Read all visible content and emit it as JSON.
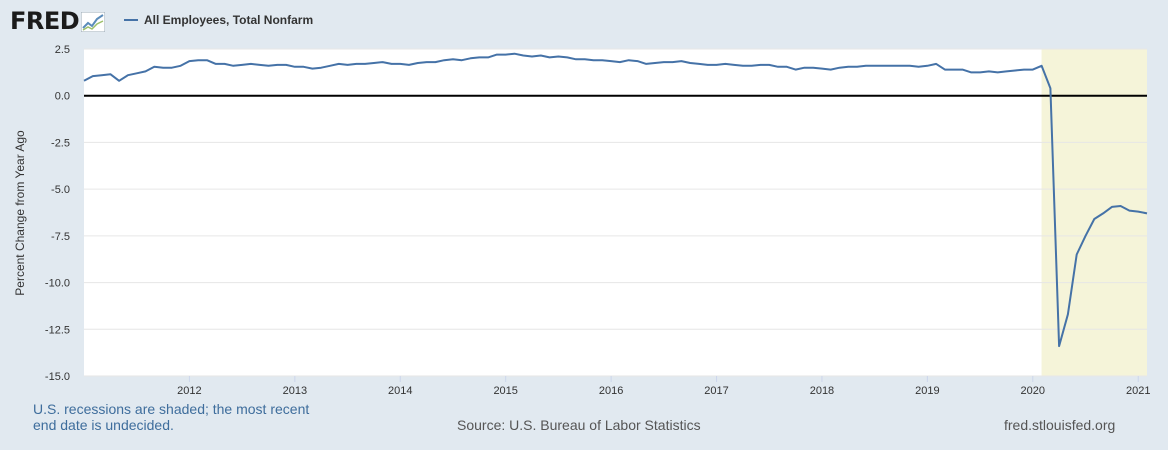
{
  "header": {
    "logo_text": "FRED"
  },
  "footer": {
    "note": "U.S. recessions are shaded; the most recent end date is undecided.",
    "source": "Source: U.S. Bureau of Labor Statistics",
    "site": "fred.stlouisfed.org"
  },
  "colors": {
    "line": "#4572a7",
    "recession": "#f5f4d9",
    "zero_line": "#000000",
    "grid": "#e6e6e6",
    "background": "#e1e9f0",
    "plot_bg": "#ffffff"
  },
  "chart_data": {
    "type": "line",
    "title": "",
    "xlabel": "",
    "ylabel": "Percent Change from Year Ago",
    "ylim": [
      -15.0,
      2.5
    ],
    "yticks": [
      "2.5",
      "0.0",
      "-2.5",
      "-5.0",
      "-7.5",
      "-10.0",
      "-12.5",
      "-15.0"
    ],
    "yticks_values": [
      2.5,
      0,
      -2.5,
      -5,
      -7.5,
      -10,
      -12.5,
      -15
    ],
    "xlim": [
      "2011-01",
      "2021-02"
    ],
    "xticks": [
      "2012",
      "2013",
      "2014",
      "2015",
      "2016",
      "2017",
      "2018",
      "2019",
      "2020",
      "2021"
    ],
    "grid": true,
    "legend_position": "top-left",
    "recession": {
      "start": "2020-02",
      "end": "2021-02"
    },
    "series": [
      {
        "name": "All Employees, Total Nonfarm",
        "x": [
          "2011-01",
          "2011-02",
          "2011-03",
          "2011-04",
          "2011-05",
          "2011-06",
          "2011-07",
          "2011-08",
          "2011-09",
          "2011-10",
          "2011-11",
          "2011-12",
          "2012-01",
          "2012-02",
          "2012-03",
          "2012-04",
          "2012-05",
          "2012-06",
          "2012-07",
          "2012-08",
          "2012-09",
          "2012-10",
          "2012-11",
          "2012-12",
          "2013-01",
          "2013-02",
          "2013-03",
          "2013-04",
          "2013-05",
          "2013-06",
          "2013-07",
          "2013-08",
          "2013-09",
          "2013-10",
          "2013-11",
          "2013-12",
          "2014-01",
          "2014-02",
          "2014-03",
          "2014-04",
          "2014-05",
          "2014-06",
          "2014-07",
          "2014-08",
          "2014-09",
          "2014-10",
          "2014-11",
          "2014-12",
          "2015-01",
          "2015-02",
          "2015-03",
          "2015-04",
          "2015-05",
          "2015-06",
          "2015-07",
          "2015-08",
          "2015-09",
          "2015-10",
          "2015-11",
          "2015-12",
          "2016-01",
          "2016-02",
          "2016-03",
          "2016-04",
          "2016-05",
          "2016-06",
          "2016-07",
          "2016-08",
          "2016-09",
          "2016-10",
          "2016-11",
          "2016-12",
          "2017-01",
          "2017-02",
          "2017-03",
          "2017-04",
          "2017-05",
          "2017-06",
          "2017-07",
          "2017-08",
          "2017-09",
          "2017-10",
          "2017-11",
          "2017-12",
          "2018-01",
          "2018-02",
          "2018-03",
          "2018-04",
          "2018-05",
          "2018-06",
          "2018-07",
          "2018-08",
          "2018-09",
          "2018-10",
          "2018-11",
          "2018-12",
          "2019-01",
          "2019-02",
          "2019-03",
          "2019-04",
          "2019-05",
          "2019-06",
          "2019-07",
          "2019-08",
          "2019-09",
          "2019-10",
          "2019-11",
          "2019-12",
          "2020-01",
          "2020-02",
          "2020-03",
          "2020-04",
          "2020-05",
          "2020-06",
          "2020-07",
          "2020-08",
          "2020-09",
          "2020-10",
          "2020-11",
          "2020-12",
          "2021-01",
          "2021-02"
        ],
        "y": [
          0.8,
          1.05,
          1.1,
          1.15,
          0.8,
          1.1,
          1.2,
          1.3,
          1.55,
          1.5,
          1.5,
          1.6,
          1.85,
          1.9,
          1.9,
          1.7,
          1.7,
          1.6,
          1.65,
          1.7,
          1.65,
          1.6,
          1.65,
          1.65,
          1.55,
          1.55,
          1.45,
          1.5,
          1.6,
          1.7,
          1.65,
          1.7,
          1.7,
          1.75,
          1.8,
          1.7,
          1.7,
          1.65,
          1.75,
          1.8,
          1.8,
          1.9,
          1.95,
          1.9,
          2.0,
          2.05,
          2.05,
          2.2,
          2.2,
          2.25,
          2.15,
          2.1,
          2.15,
          2.05,
          2.1,
          2.05,
          1.95,
          1.95,
          1.9,
          1.9,
          1.85,
          1.8,
          1.9,
          1.85,
          1.7,
          1.75,
          1.8,
          1.8,
          1.85,
          1.75,
          1.7,
          1.65,
          1.65,
          1.7,
          1.65,
          1.6,
          1.6,
          1.65,
          1.65,
          1.55,
          1.55,
          1.4,
          1.5,
          1.5,
          1.45,
          1.4,
          1.5,
          1.55,
          1.55,
          1.6,
          1.6,
          1.6,
          1.6,
          1.6,
          1.6,
          1.55,
          1.6,
          1.7,
          1.4,
          1.4,
          1.4,
          1.25,
          1.25,
          1.3,
          1.25,
          1.3,
          1.35,
          1.4,
          1.4,
          1.6,
          0.4,
          -13.4,
          -11.7,
          -8.5,
          -7.5,
          -6.6,
          -6.3,
          -5.95,
          -5.9,
          -6.15,
          -6.2,
          -6.3
        ]
      }
    ]
  }
}
